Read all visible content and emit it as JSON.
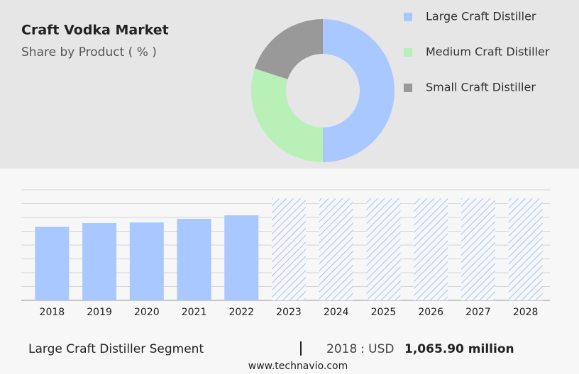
{
  "chart_data": [
    {
      "type": "pie",
      "title": "Craft Vodka Market",
      "subtitle": "Share by Product ( % )",
      "hole": true,
      "series": [
        {
          "name": "Large Craft Distiller",
          "color": "#a8c8ff",
          "values": [
            50
          ]
        },
        {
          "name": "Medium Craft Distiller",
          "color": "#b8f0b8",
          "values": [
            30
          ]
        },
        {
          "name": "Small Craft Distiller",
          "color": "#999999",
          "values": [
            20
          ]
        }
      ]
    },
    {
      "type": "bar",
      "categories": [
        "2018",
        "2019",
        "2020",
        "2021",
        "2022",
        "2023",
        "2024",
        "2025",
        "2026",
        "2027",
        "2028"
      ],
      "values": [
        1065.9,
        1118,
        1128,
        1180,
        1231,
        1477,
        1477,
        1477,
        1477,
        1477,
        1477
      ],
      "hatched": [
        false,
        false,
        false,
        false,
        false,
        true,
        true,
        true,
        true,
        true,
        true
      ],
      "color": "#a8c8ff",
      "ylim": [
        0,
        1600
      ],
      "yticks": [
        0,
        200,
        400,
        600,
        800,
        1000,
        1200,
        1400,
        1600
      ],
      "grid": true
    }
  ],
  "footer": {
    "segment": "Large Craft Distiller Segment",
    "year": "2018",
    "unit": ": USD",
    "value": "1,065.90 million"
  },
  "source": "www.technavio.com"
}
